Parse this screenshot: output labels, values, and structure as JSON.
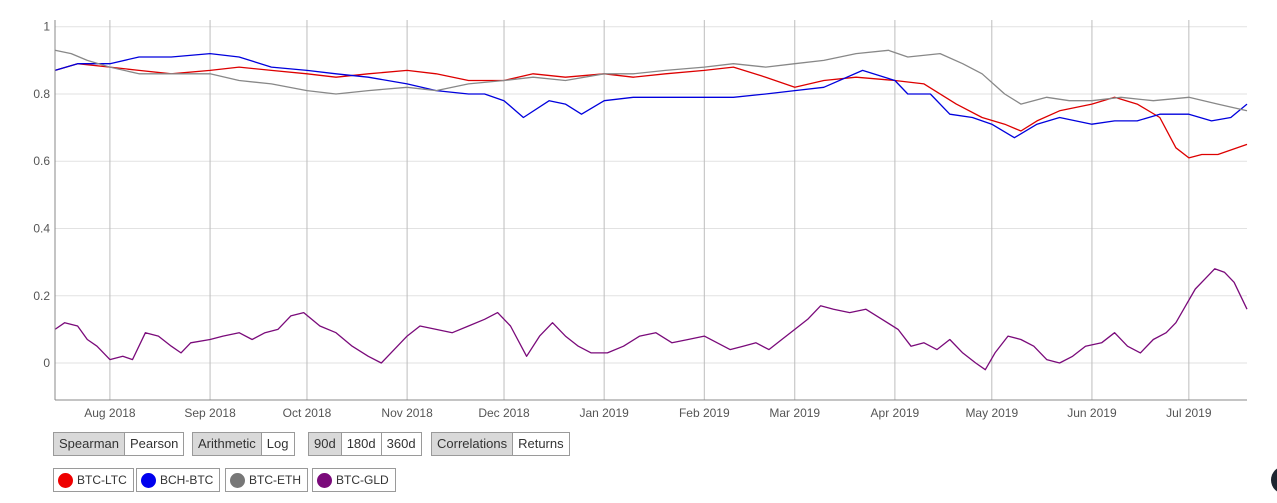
{
  "chart_data": {
    "type": "line",
    "x_axis": {
      "start": "2018-07-15",
      "end": "2019-07-19",
      "tick_labels": [
        "Aug 2018",
        "Sep 2018",
        "Oct 2018",
        "Nov 2018",
        "Dec 2018",
        "Jan 2019",
        "Feb 2019",
        "Mar 2019",
        "Apr 2019",
        "May 2019",
        "Jun 2019",
        "Jul 2019"
      ],
      "tick_dates": [
        "2018-08-01",
        "2018-09-01",
        "2018-10-01",
        "2018-11-01",
        "2018-12-01",
        "2019-01-01",
        "2019-02-01",
        "2019-03-01",
        "2019-04-01",
        "2019-05-01",
        "2019-06-01",
        "2019-07-01"
      ]
    },
    "y_axis": {
      "ylim": [
        -0.11,
        1.02
      ],
      "ticks": [
        0,
        0.2,
        0.4,
        0.6,
        0.8,
        1
      ],
      "tick_labels": [
        "0",
        "0.2",
        "0.4",
        "0.6",
        "0.8",
        "1"
      ]
    },
    "grid": true,
    "series": [
      {
        "name": "BTC-LTC",
        "color": "#dd0000",
        "points": [
          [
            "2018-07-15",
            0.87
          ],
          [
            "2018-07-22",
            0.89
          ],
          [
            "2018-08-01",
            0.88
          ],
          [
            "2018-08-10",
            0.87
          ],
          [
            "2018-08-20",
            0.86
          ],
          [
            "2018-09-01",
            0.87
          ],
          [
            "2018-09-10",
            0.88
          ],
          [
            "2018-09-20",
            0.87
          ],
          [
            "2018-10-01",
            0.86
          ],
          [
            "2018-10-10",
            0.85
          ],
          [
            "2018-10-20",
            0.86
          ],
          [
            "2018-11-01",
            0.87
          ],
          [
            "2018-11-10",
            0.86
          ],
          [
            "2018-11-20",
            0.84
          ],
          [
            "2018-12-01",
            0.84
          ],
          [
            "2018-12-10",
            0.86
          ],
          [
            "2018-12-20",
            0.85
          ],
          [
            "2019-01-01",
            0.86
          ],
          [
            "2019-01-10",
            0.85
          ],
          [
            "2019-01-20",
            0.86
          ],
          [
            "2019-02-01",
            0.87
          ],
          [
            "2019-02-10",
            0.88
          ],
          [
            "2019-02-20",
            0.85
          ],
          [
            "2019-03-01",
            0.82
          ],
          [
            "2019-03-10",
            0.84
          ],
          [
            "2019-03-20",
            0.85
          ],
          [
            "2019-04-01",
            0.84
          ],
          [
            "2019-04-10",
            0.83
          ],
          [
            "2019-04-20",
            0.77
          ],
          [
            "2019-04-28",
            0.73
          ],
          [
            "2019-05-05",
            0.71
          ],
          [
            "2019-05-10",
            0.69
          ],
          [
            "2019-05-15",
            0.72
          ],
          [
            "2019-05-22",
            0.75
          ],
          [
            "2019-06-01",
            0.77
          ],
          [
            "2019-06-08",
            0.79
          ],
          [
            "2019-06-15",
            0.77
          ],
          [
            "2019-06-22",
            0.73
          ],
          [
            "2019-06-27",
            0.64
          ],
          [
            "2019-07-01",
            0.61
          ],
          [
            "2019-07-05",
            0.62
          ],
          [
            "2019-07-10",
            0.62
          ],
          [
            "2019-07-19",
            0.65
          ]
        ]
      },
      {
        "name": "BCH-BTC",
        "color": "#0000dd",
        "points": [
          [
            "2018-07-15",
            0.87
          ],
          [
            "2018-07-22",
            0.89
          ],
          [
            "2018-08-01",
            0.89
          ],
          [
            "2018-08-10",
            0.91
          ],
          [
            "2018-08-20",
            0.91
          ],
          [
            "2018-09-01",
            0.92
          ],
          [
            "2018-09-10",
            0.91
          ],
          [
            "2018-09-20",
            0.88
          ],
          [
            "2018-10-01",
            0.87
          ],
          [
            "2018-10-10",
            0.86
          ],
          [
            "2018-10-20",
            0.85
          ],
          [
            "2018-11-01",
            0.83
          ],
          [
            "2018-11-10",
            0.81
          ],
          [
            "2018-11-20",
            0.8
          ],
          [
            "2018-11-25",
            0.8
          ],
          [
            "2018-12-01",
            0.78
          ],
          [
            "2018-12-07",
            0.73
          ],
          [
            "2018-12-15",
            0.78
          ],
          [
            "2018-12-20",
            0.77
          ],
          [
            "2018-12-25",
            0.74
          ],
          [
            "2019-01-01",
            0.78
          ],
          [
            "2019-01-10",
            0.79
          ],
          [
            "2019-01-20",
            0.79
          ],
          [
            "2019-02-01",
            0.79
          ],
          [
            "2019-02-10",
            0.79
          ],
          [
            "2019-02-20",
            0.8
          ],
          [
            "2019-03-01",
            0.81
          ],
          [
            "2019-03-10",
            0.82
          ],
          [
            "2019-03-22",
            0.87
          ],
          [
            "2019-04-01",
            0.84
          ],
          [
            "2019-04-05",
            0.8
          ],
          [
            "2019-04-12",
            0.8
          ],
          [
            "2019-04-18",
            0.74
          ],
          [
            "2019-04-25",
            0.73
          ],
          [
            "2019-05-01",
            0.71
          ],
          [
            "2019-05-08",
            0.67
          ],
          [
            "2019-05-15",
            0.71
          ],
          [
            "2019-05-22",
            0.73
          ],
          [
            "2019-06-01",
            0.71
          ],
          [
            "2019-06-08",
            0.72
          ],
          [
            "2019-06-15",
            0.72
          ],
          [
            "2019-06-22",
            0.74
          ],
          [
            "2019-07-01",
            0.74
          ],
          [
            "2019-07-08",
            0.72
          ],
          [
            "2019-07-14",
            0.73
          ],
          [
            "2019-07-19",
            0.77
          ]
        ]
      },
      {
        "name": "BTC-ETH",
        "color": "#888888",
        "points": [
          [
            "2018-07-15",
            0.93
          ],
          [
            "2018-07-20",
            0.92
          ],
          [
            "2018-07-25",
            0.9
          ],
          [
            "2018-08-01",
            0.88
          ],
          [
            "2018-08-10",
            0.86
          ],
          [
            "2018-08-20",
            0.86
          ],
          [
            "2018-09-01",
            0.86
          ],
          [
            "2018-09-10",
            0.84
          ],
          [
            "2018-09-20",
            0.83
          ],
          [
            "2018-10-01",
            0.81
          ],
          [
            "2018-10-10",
            0.8
          ],
          [
            "2018-10-20",
            0.81
          ],
          [
            "2018-11-01",
            0.82
          ],
          [
            "2018-11-10",
            0.81
          ],
          [
            "2018-11-20",
            0.83
          ],
          [
            "2018-12-01",
            0.84
          ],
          [
            "2018-12-10",
            0.85
          ],
          [
            "2018-12-20",
            0.84
          ],
          [
            "2019-01-01",
            0.86
          ],
          [
            "2019-01-10",
            0.86
          ],
          [
            "2019-01-20",
            0.87
          ],
          [
            "2019-02-01",
            0.88
          ],
          [
            "2019-02-10",
            0.89
          ],
          [
            "2019-02-20",
            0.88
          ],
          [
            "2019-03-01",
            0.89
          ],
          [
            "2019-03-10",
            0.9
          ],
          [
            "2019-03-20",
            0.92
          ],
          [
            "2019-03-30",
            0.93
          ],
          [
            "2019-04-05",
            0.91
          ],
          [
            "2019-04-15",
            0.92
          ],
          [
            "2019-04-22",
            0.89
          ],
          [
            "2019-04-28",
            0.86
          ],
          [
            "2019-05-05",
            0.8
          ],
          [
            "2019-05-10",
            0.77
          ],
          [
            "2019-05-18",
            0.79
          ],
          [
            "2019-05-25",
            0.78
          ],
          [
            "2019-06-01",
            0.78
          ],
          [
            "2019-06-10",
            0.79
          ],
          [
            "2019-06-20",
            0.78
          ],
          [
            "2019-07-01",
            0.79
          ],
          [
            "2019-07-10",
            0.77
          ],
          [
            "2019-07-19",
            0.75
          ]
        ]
      },
      {
        "name": "BTC-GLD",
        "color": "#7a0a7a",
        "points": [
          [
            "2018-07-15",
            0.1
          ],
          [
            "2018-07-18",
            0.12
          ],
          [
            "2018-07-22",
            0.11
          ],
          [
            "2018-07-25",
            0.07
          ],
          [
            "2018-07-28",
            0.05
          ],
          [
            "2018-08-01",
            0.01
          ],
          [
            "2018-08-05",
            0.02
          ],
          [
            "2018-08-08",
            0.01
          ],
          [
            "2018-08-12",
            0.09
          ],
          [
            "2018-08-16",
            0.08
          ],
          [
            "2018-08-20",
            0.05
          ],
          [
            "2018-08-23",
            0.03
          ],
          [
            "2018-08-26",
            0.06
          ],
          [
            "2018-09-01",
            0.07
          ],
          [
            "2018-09-05",
            0.08
          ],
          [
            "2018-09-10",
            0.09
          ],
          [
            "2018-09-14",
            0.07
          ],
          [
            "2018-09-18",
            0.09
          ],
          [
            "2018-09-22",
            0.1
          ],
          [
            "2018-09-26",
            0.14
          ],
          [
            "2018-09-30",
            0.15
          ],
          [
            "2018-10-05",
            0.11
          ],
          [
            "2018-10-10",
            0.09
          ],
          [
            "2018-10-15",
            0.05
          ],
          [
            "2018-10-20",
            0.02
          ],
          [
            "2018-10-24",
            0.0
          ],
          [
            "2018-10-28",
            0.04
          ],
          [
            "2018-11-01",
            0.08
          ],
          [
            "2018-11-05",
            0.11
          ],
          [
            "2018-11-10",
            0.1
          ],
          [
            "2018-11-15",
            0.09
          ],
          [
            "2018-11-20",
            0.11
          ],
          [
            "2018-11-25",
            0.13
          ],
          [
            "2018-11-29",
            0.15
          ],
          [
            "2018-12-03",
            0.11
          ],
          [
            "2018-12-08",
            0.02
          ],
          [
            "2018-12-12",
            0.08
          ],
          [
            "2018-12-16",
            0.12
          ],
          [
            "2018-12-20",
            0.08
          ],
          [
            "2018-12-24",
            0.05
          ],
          [
            "2018-12-28",
            0.03
          ],
          [
            "2019-01-02",
            0.03
          ],
          [
            "2019-01-07",
            0.05
          ],
          [
            "2019-01-12",
            0.08
          ],
          [
            "2019-01-17",
            0.09
          ],
          [
            "2019-01-22",
            0.06
          ],
          [
            "2019-01-27",
            0.07
          ],
          [
            "2019-02-01",
            0.08
          ],
          [
            "2019-02-05",
            0.06
          ],
          [
            "2019-02-09",
            0.04
          ],
          [
            "2019-02-13",
            0.05
          ],
          [
            "2019-02-17",
            0.06
          ],
          [
            "2019-02-21",
            0.04
          ],
          [
            "2019-02-25",
            0.07
          ],
          [
            "2019-03-01",
            0.1
          ],
          [
            "2019-03-05",
            0.13
          ],
          [
            "2019-03-09",
            0.17
          ],
          [
            "2019-03-13",
            0.16
          ],
          [
            "2019-03-18",
            0.15
          ],
          [
            "2019-03-23",
            0.16
          ],
          [
            "2019-03-28",
            0.13
          ],
          [
            "2019-04-02",
            0.1
          ],
          [
            "2019-04-06",
            0.05
          ],
          [
            "2019-04-10",
            0.06
          ],
          [
            "2019-04-14",
            0.04
          ],
          [
            "2019-04-18",
            0.07
          ],
          [
            "2019-04-22",
            0.03
          ],
          [
            "2019-04-26",
            0.0
          ],
          [
            "2019-04-29",
            -0.02
          ],
          [
            "2019-05-02",
            0.03
          ],
          [
            "2019-05-06",
            0.08
          ],
          [
            "2019-05-10",
            0.07
          ],
          [
            "2019-05-14",
            0.05
          ],
          [
            "2019-05-18",
            0.01
          ],
          [
            "2019-05-22",
            0.0
          ],
          [
            "2019-05-26",
            0.02
          ],
          [
            "2019-05-30",
            0.05
          ],
          [
            "2019-06-04",
            0.06
          ],
          [
            "2019-06-08",
            0.09
          ],
          [
            "2019-06-12",
            0.05
          ],
          [
            "2019-06-16",
            0.03
          ],
          [
            "2019-06-20",
            0.07
          ],
          [
            "2019-06-24",
            0.09
          ],
          [
            "2019-06-27",
            0.12
          ],
          [
            "2019-06-30",
            0.17
          ],
          [
            "2019-07-03",
            0.22
          ],
          [
            "2019-07-06",
            0.25
          ],
          [
            "2019-07-09",
            0.28
          ],
          [
            "2019-07-12",
            0.27
          ],
          [
            "2019-07-15",
            0.24
          ],
          [
            "2019-07-19",
            0.16
          ]
        ]
      }
    ]
  },
  "controls": {
    "method": [
      "Spearman",
      "Pearson"
    ],
    "scale": [
      "Arithmetic",
      "Log"
    ],
    "window": [
      "90d",
      "180d",
      "360d"
    ],
    "view": [
      "Correlations",
      "Returns"
    ]
  },
  "legend": [
    {
      "label": "BTC-LTC",
      "color": "#ee0000"
    },
    {
      "label": "BCH-BTC",
      "color": "#0000ee"
    },
    {
      "label": "BTC-ETH",
      "color": "#777777"
    },
    {
      "label": "BTC-GLD",
      "color": "#7a0a7a"
    }
  ]
}
